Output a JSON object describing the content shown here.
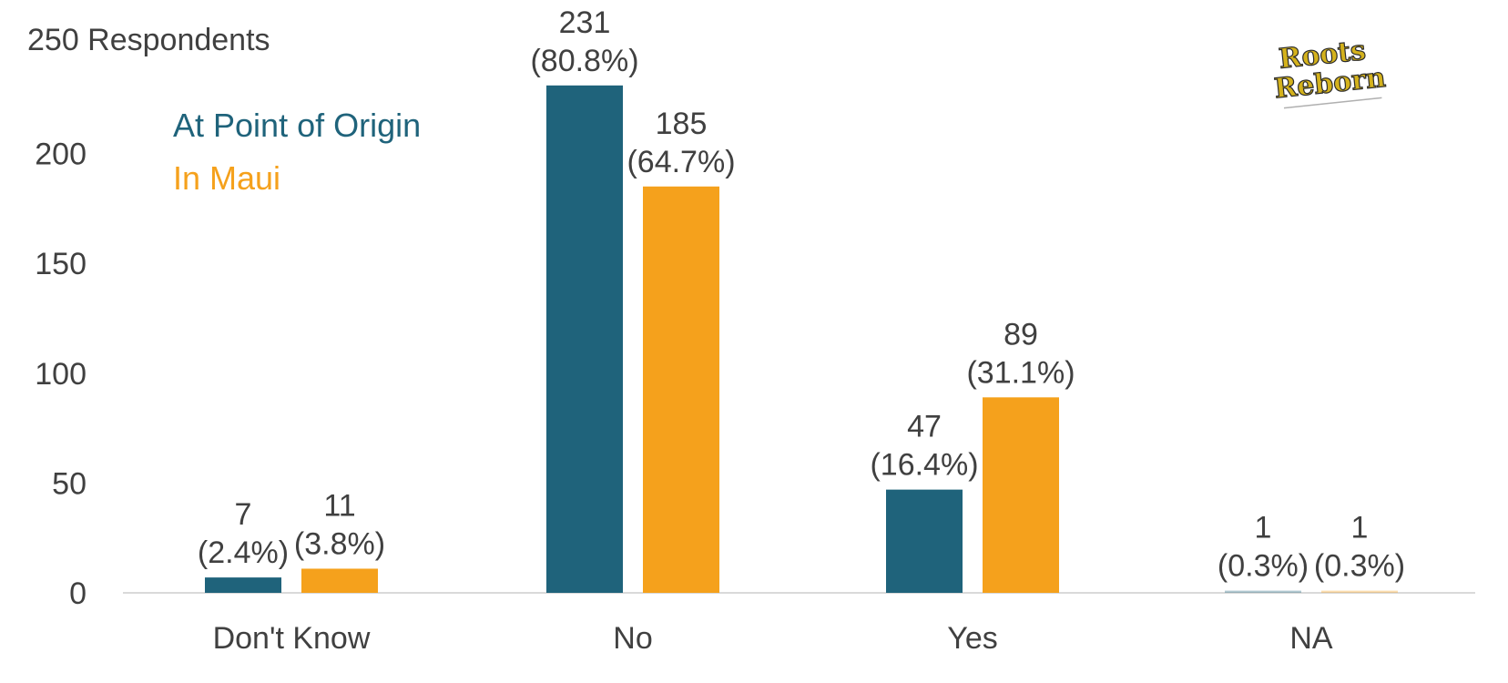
{
  "chart_data": {
    "type": "bar",
    "ylabel": "250 Respondents",
    "ylim": [
      0,
      250
    ],
    "yticks": [
      0,
      50,
      100,
      150,
      200
    ],
    "categories": [
      "Don't Know",
      "No",
      "Yes",
      "NA"
    ],
    "series": [
      {
        "name": "At Point of Origin",
        "color": "#1f637b",
        "values": [
          7,
          231,
          47,
          1
        ],
        "percent_labels": [
          "(2.4%)",
          "(80.8%)",
          "(16.4%)",
          "(0.3%)"
        ]
      },
      {
        "name": "In Maui",
        "color": "#f5a11c",
        "values": [
          11,
          185,
          89,
          1
        ],
        "percent_labels": [
          "(3.8%)",
          "(64.7%)",
          "(31.1%)",
          "(0.3%)"
        ]
      }
    ],
    "legend_position": "top-left",
    "grid": false
  },
  "logo": {
    "line1": "Roots",
    "line2": "Reborn"
  }
}
